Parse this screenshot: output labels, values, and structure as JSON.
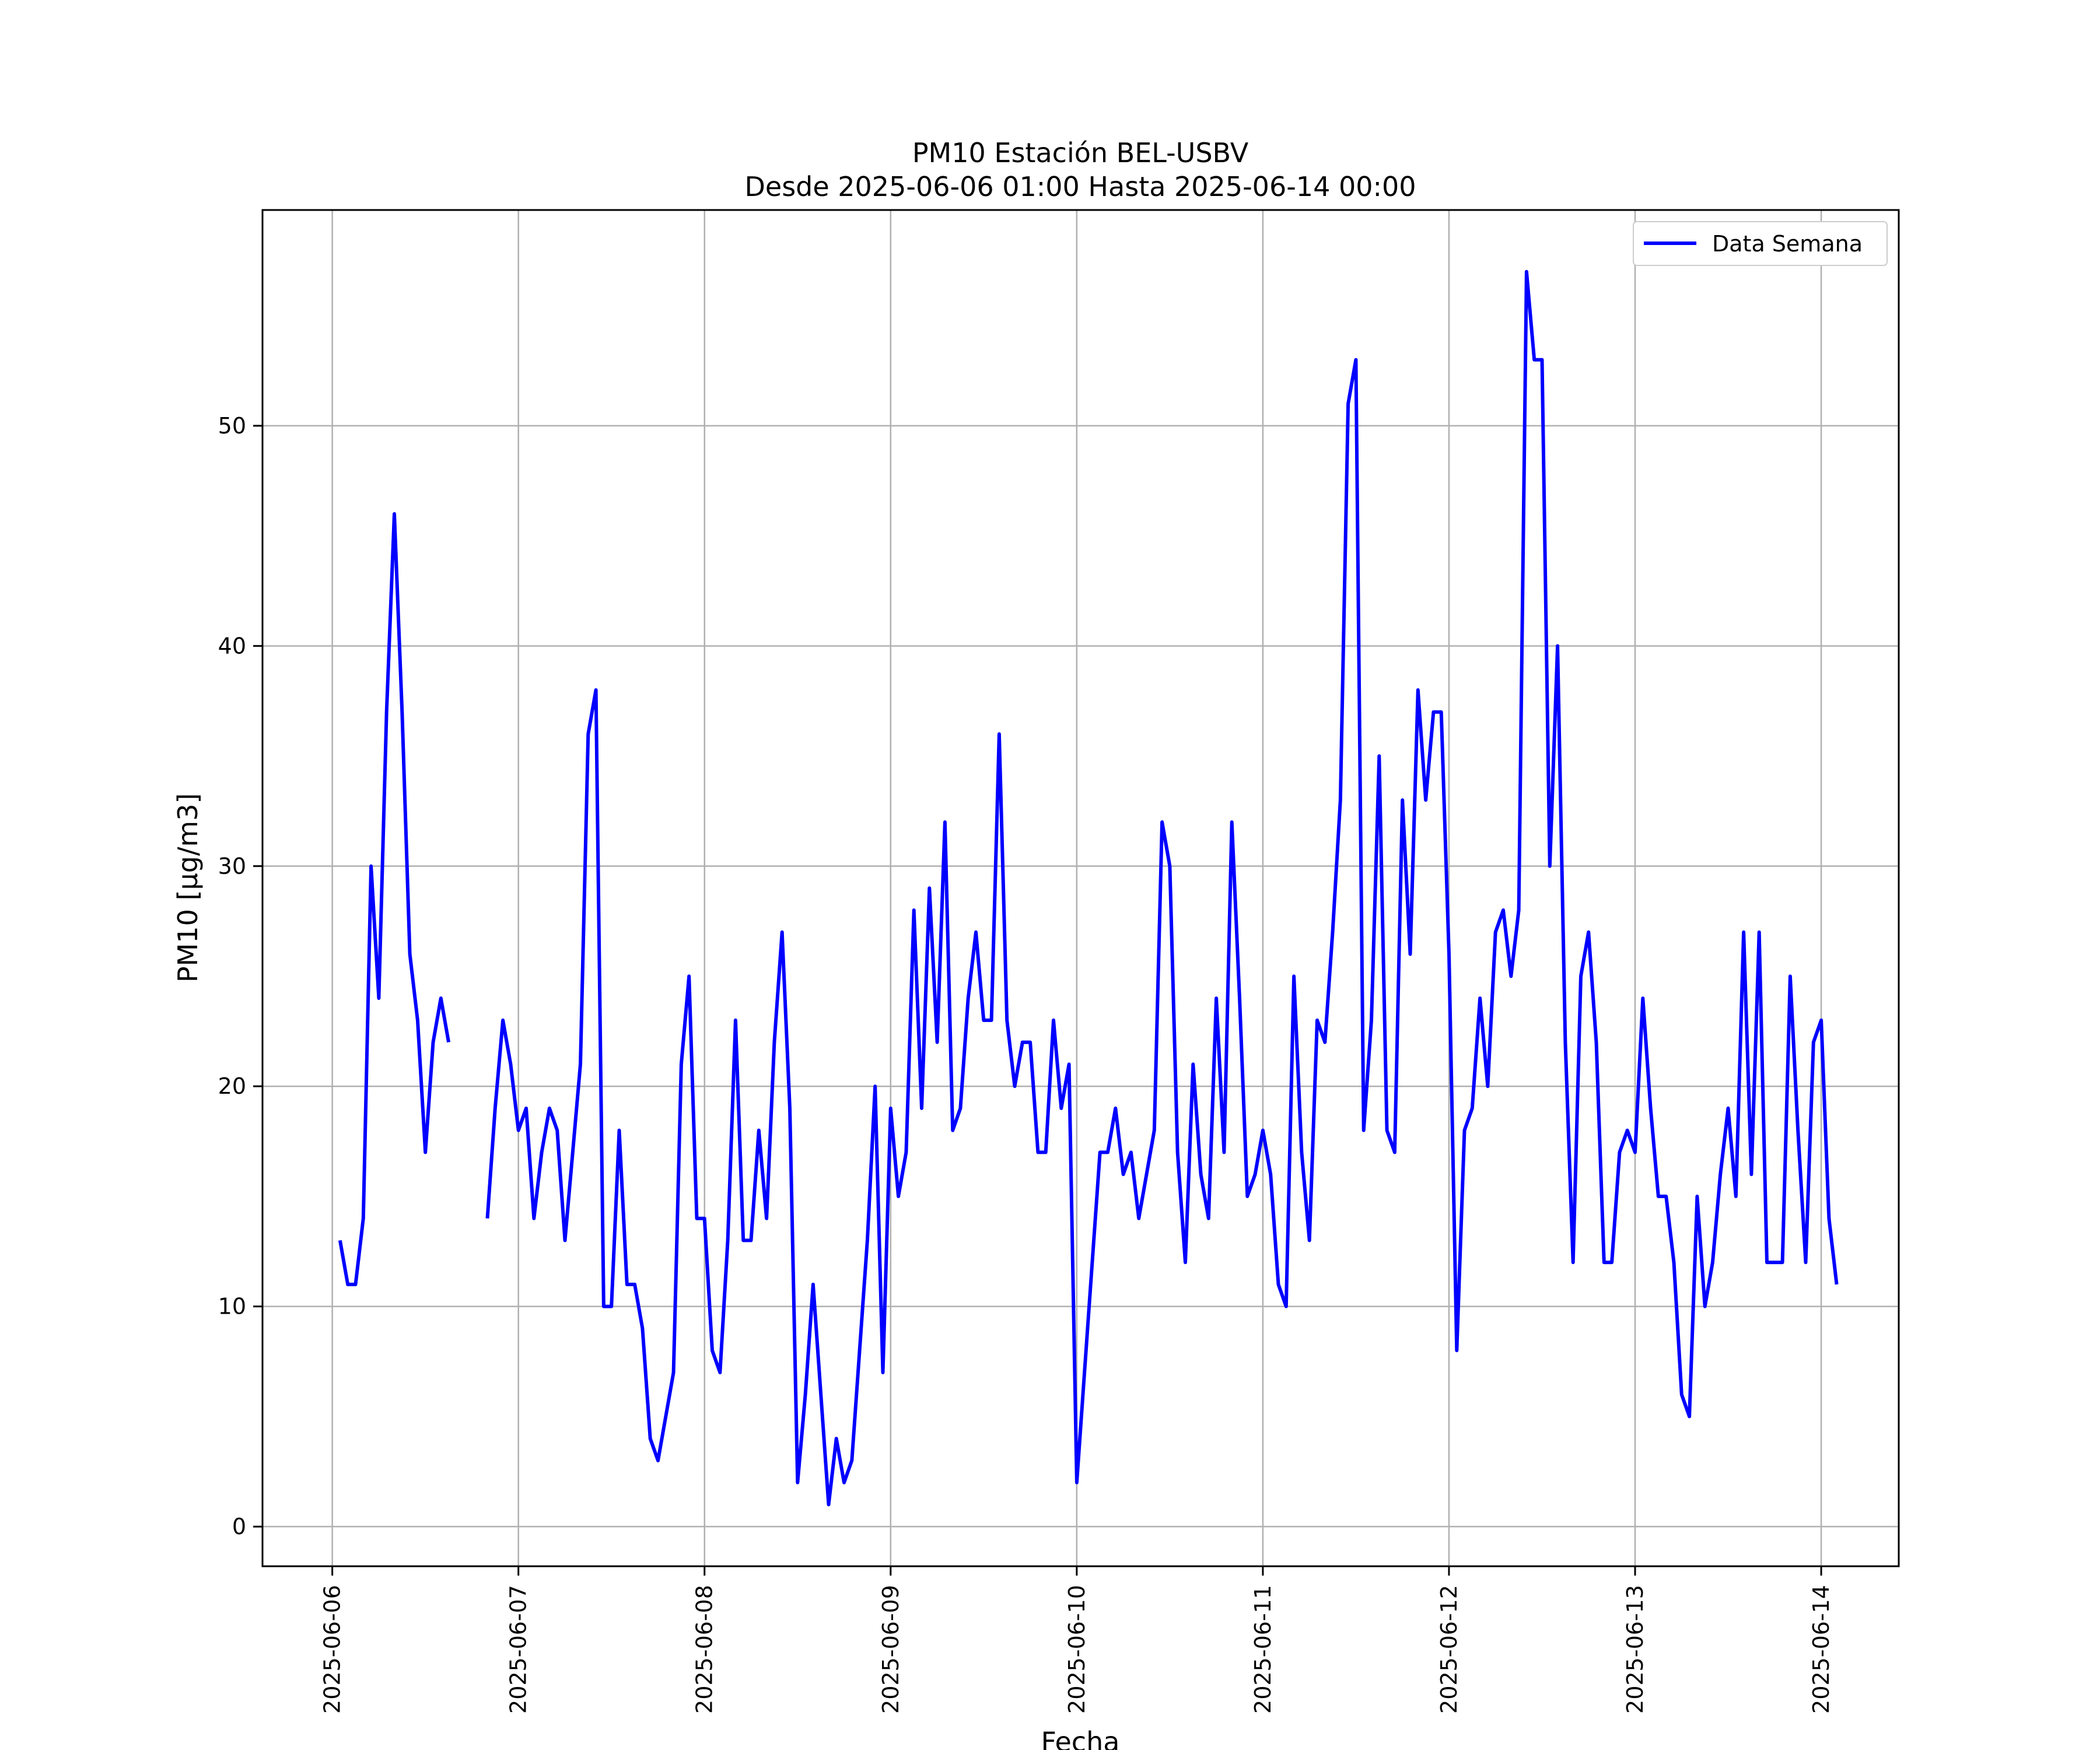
{
  "chart_data": {
    "type": "line",
    "title": "PM10 Estación BEL-USBV",
    "subtitle": "Desde 2025-06-06 01:00 Hasta 2025-06-14 00:00",
    "xlabel": "Fecha",
    "ylabel": "PM10 [μg/m3]",
    "x_start": "2025-06-06 01:00",
    "x_end": "2025-06-14 00:00",
    "x_step": "1h",
    "xlim": [
      "2025-06-05 15:00",
      "2025-06-14 10:00"
    ],
    "ylim": [
      -1.8,
      59.8
    ],
    "x_ticks": [
      "2025-06-06",
      "2025-06-07",
      "2025-06-08",
      "2025-06-09",
      "2025-06-10",
      "2025-06-11",
      "2025-06-12",
      "2025-06-13",
      "2025-06-14"
    ],
    "y_ticks": [
      0,
      10,
      20,
      30,
      40,
      50
    ],
    "grid": true,
    "legend_position": "top-right",
    "series": [
      {
        "name": "Data Semana",
        "color": "#0000ff",
        "values": [
          13,
          11,
          11,
          14,
          30,
          24,
          37,
          46,
          37,
          26,
          23,
          17,
          22,
          24,
          22,
          null,
          null,
          null,
          null,
          14,
          19,
          23,
          21,
          18,
          19,
          14,
          17,
          19,
          18,
          13,
          17,
          21,
          36,
          38,
          10,
          10,
          18,
          11,
          11,
          9,
          4,
          3,
          5,
          7,
          21,
          25,
          14,
          14,
          8,
          7,
          13,
          23,
          13,
          13,
          18,
          14,
          22,
          27,
          19,
          2,
          6,
          11,
          6,
          1,
          4,
          2,
          3,
          8,
          13,
          20,
          7,
          19,
          15,
          17,
          28,
          19,
          29,
          22,
          32,
          18,
          19,
          24,
          27,
          23,
          23,
          36,
          23,
          20,
          22,
          22,
          17,
          17,
          23,
          19,
          21,
          2,
          7,
          12,
          17,
          17,
          19,
          16,
          17,
          14,
          16,
          18,
          32,
          30,
          17,
          12,
          21,
          16,
          14,
          24,
          17,
          32,
          24,
          15,
          16,
          18,
          16,
          11,
          10,
          25,
          17,
          13,
          23,
          22,
          27,
          33,
          51,
          53,
          18,
          23,
          35,
          18,
          17,
          33,
          26,
          38,
          33,
          37,
          37,
          26,
          8,
          18,
          19,
          24,
          20,
          27,
          28,
          25,
          28,
          57,
          53,
          53,
          30,
          40,
          22,
          12,
          25,
          27,
          22,
          12,
          12,
          17,
          18,
          17,
          24,
          19,
          15,
          15,
          12,
          6,
          5,
          15,
          10,
          12,
          16,
          19,
          15,
          27,
          16,
          27,
          12,
          12,
          12,
          25,
          18,
          12,
          22,
          23,
          14,
          11
        ]
      }
    ]
  }
}
